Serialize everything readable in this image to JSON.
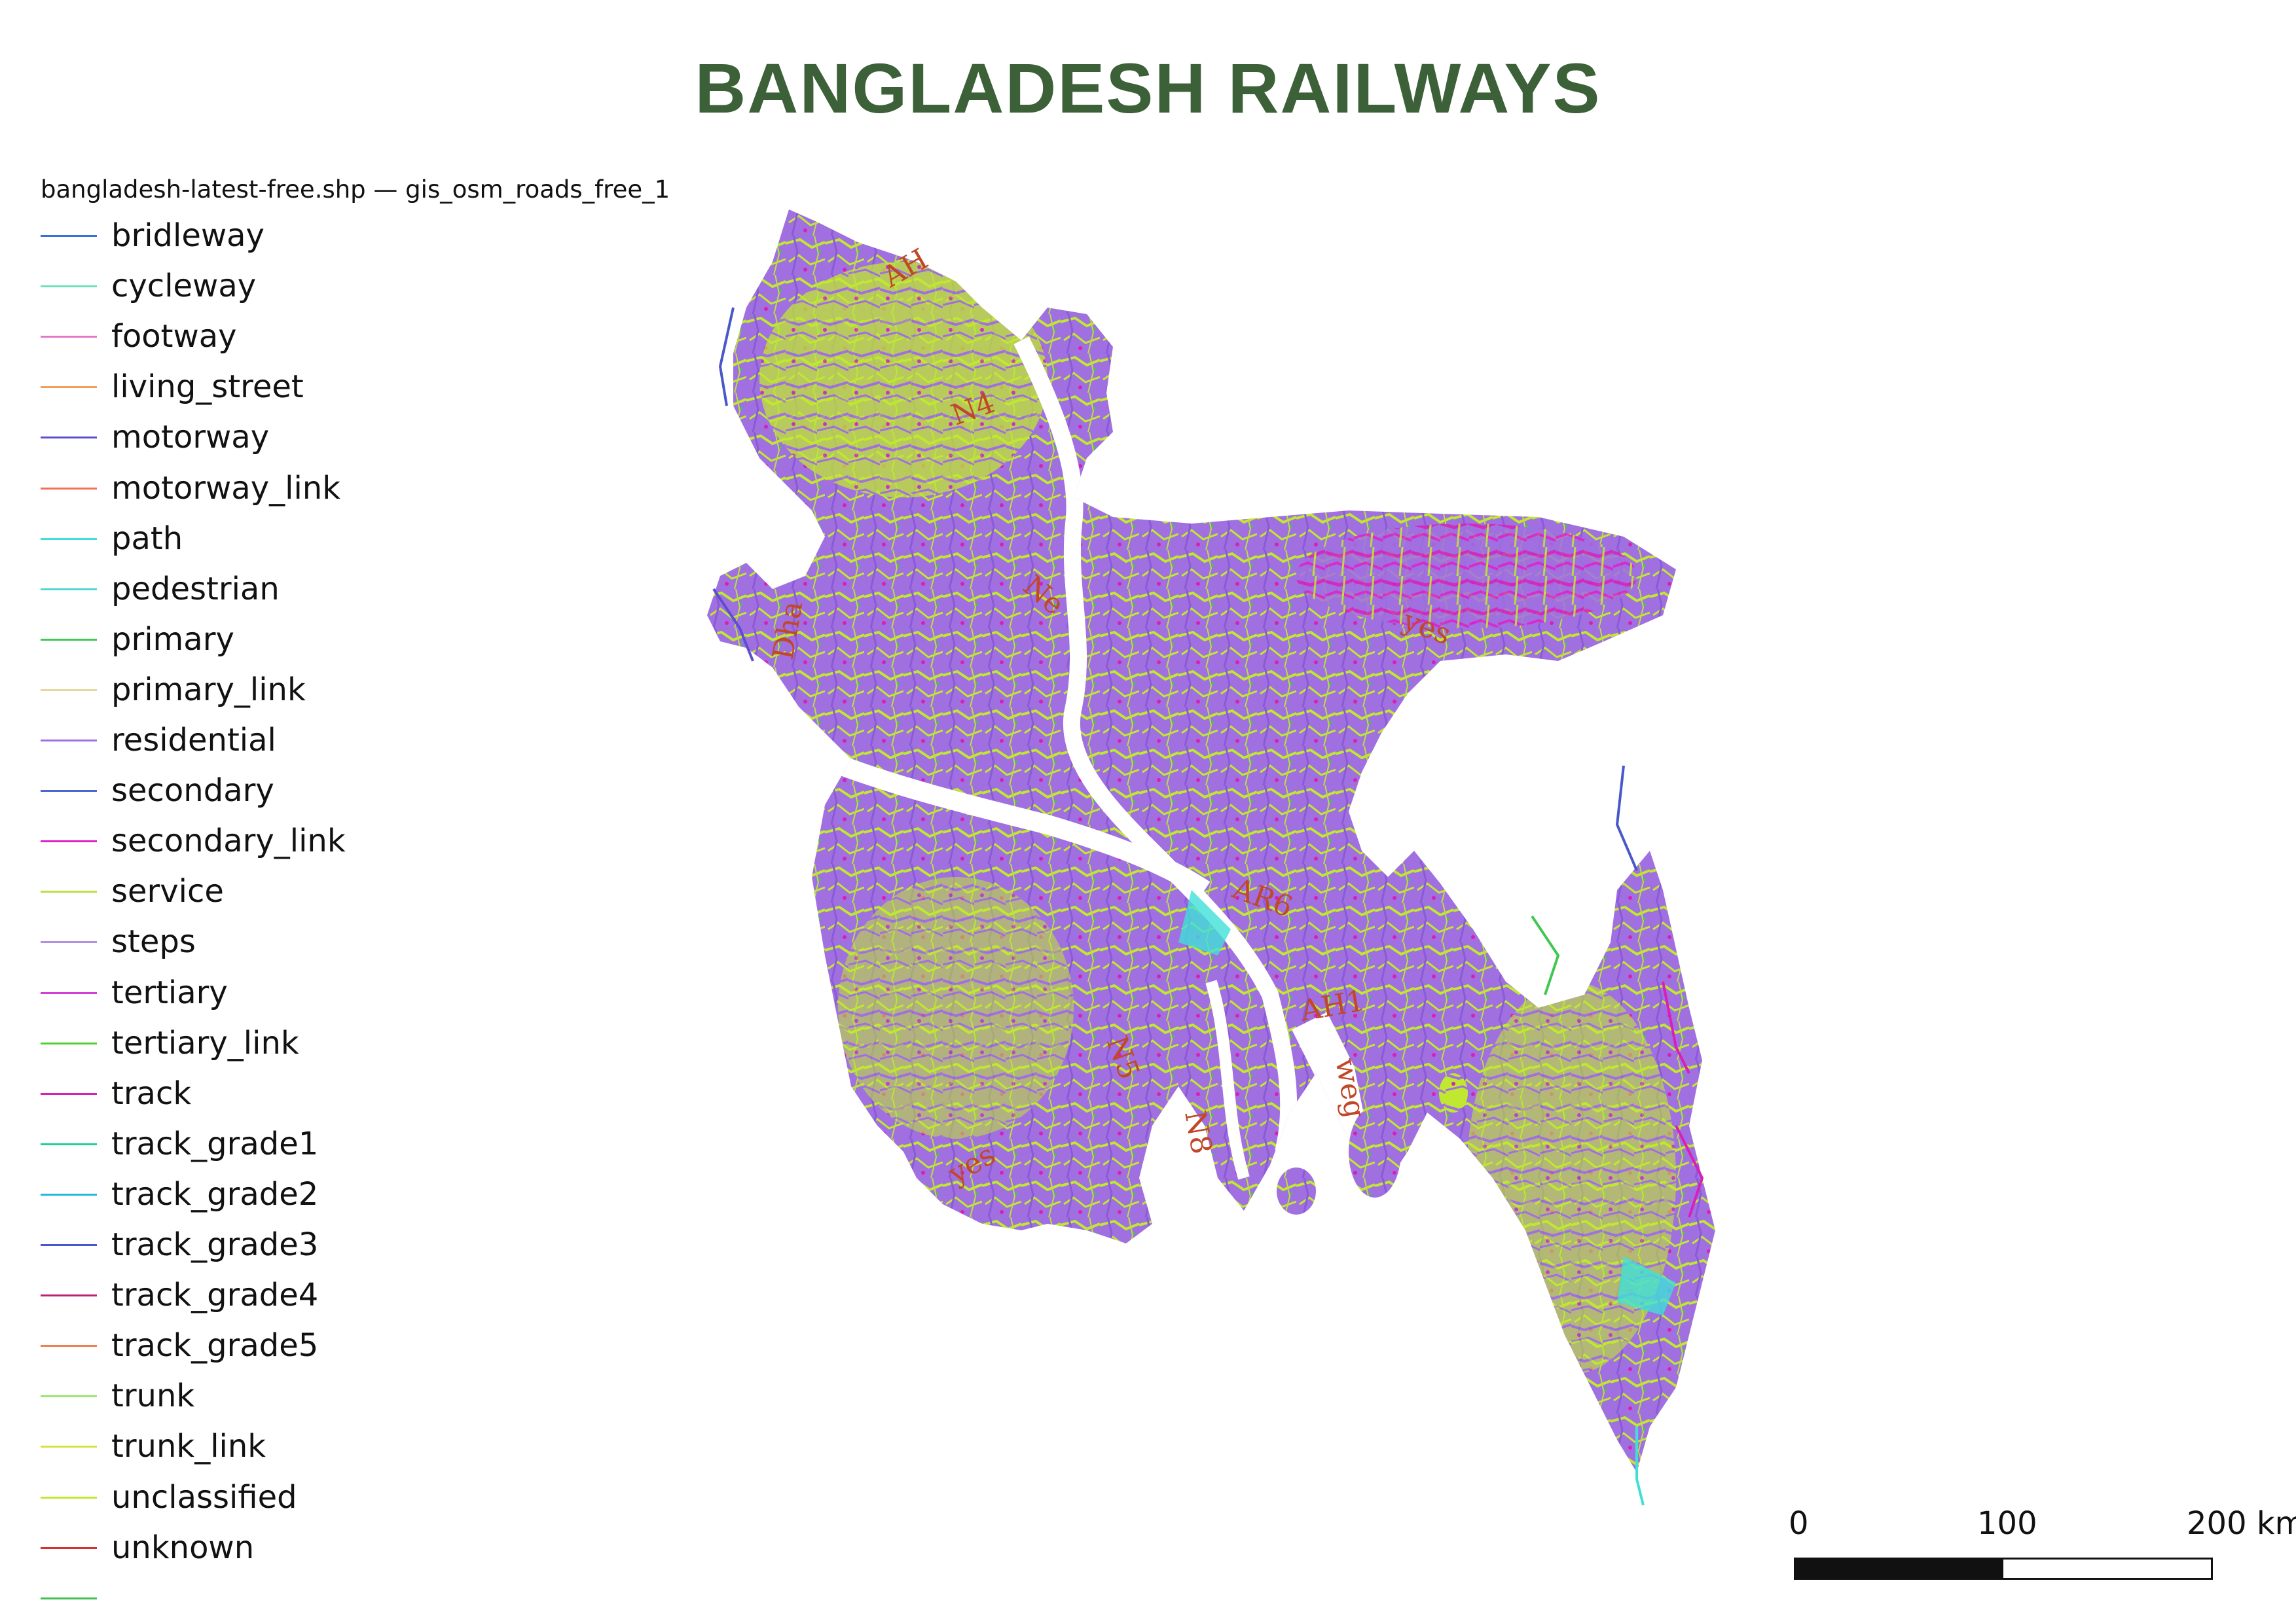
{
  "title": "BANGLADESH RAILWAYS",
  "legend": {
    "title": "bangladesh-latest-free.shp — gis_osm_roads_free_1",
    "items": [
      {
        "label": "bridleway",
        "color": "#3a6fd6"
      },
      {
        "label": "cycleway",
        "color": "#6fe0b8"
      },
      {
        "label": "footway",
        "color": "#e07ac8"
      },
      {
        "label": "living_street",
        "color": "#f0a060"
      },
      {
        "label": "motorway",
        "color": "#5a4fd0"
      },
      {
        "label": "motorway_link",
        "color": "#f07050"
      },
      {
        "label": "path",
        "color": "#40e0d8"
      },
      {
        "label": "pedestrian",
        "color": "#50d8d0"
      },
      {
        "label": "primary",
        "color": "#40c850"
      },
      {
        "label": "primary_link",
        "color": "#e8d8a0"
      },
      {
        "label": "residential",
        "color": "#a070e0"
      },
      {
        "label": "secondary",
        "color": "#4a68d0"
      },
      {
        "label": "secondary_link",
        "color": "#e020c8"
      },
      {
        "label": "service",
        "color": "#b8e040"
      },
      {
        "label": "steps",
        "color": "#b090e0"
      },
      {
        "label": "tertiary",
        "color": "#d040d8"
      },
      {
        "label": "tertiary_link",
        "color": "#50d030"
      },
      {
        "label": "track",
        "color": "#d820b8"
      },
      {
        "label": "track_grade1",
        "color": "#20d090"
      },
      {
        "label": "track_grade2",
        "color": "#20b8e0"
      },
      {
        "label": "track_grade3",
        "color": "#4858c8"
      },
      {
        "label": "track_grade4",
        "color": "#c02070"
      },
      {
        "label": "track_grade5",
        "color": "#f08050"
      },
      {
        "label": "trunk",
        "color": "#98e870"
      },
      {
        "label": "trunk_link",
        "color": "#d8e040"
      },
      {
        "label": "unclassified",
        "color": "#c0e830"
      },
      {
        "label": "unknown",
        "color": "#d83030"
      },
      {
        "label": "",
        "color": "#40c050"
      }
    ]
  },
  "map": {
    "fill_colors": [
      "#a070e0",
      "#c0e830",
      "#d820b8",
      "#40e0d8",
      "#5a4fd0",
      "#40c850",
      "#f07050"
    ],
    "labels": [
      {
        "text": "AH",
        "color": "#c04828"
      },
      {
        "text": "yes",
        "color": "#c04828"
      },
      {
        "text": "N4",
        "color": "#c04828"
      },
      {
        "text": "AR6",
        "color": "#c04828"
      },
      {
        "text": "Dha",
        "color": "#c04828"
      },
      {
        "text": "AH1",
        "color": "#c04828"
      },
      {
        "text": "yes",
        "color": "#c04828"
      },
      {
        "text": "N5",
        "color": "#c04828"
      },
      {
        "text": "weg",
        "color": "#c04828"
      },
      {
        "text": "Ne",
        "color": "#c04828"
      },
      {
        "text": "N8",
        "color": "#c04828"
      }
    ]
  },
  "scalebar": {
    "labels": [
      "0",
      "100",
      "200 km"
    ]
  }
}
